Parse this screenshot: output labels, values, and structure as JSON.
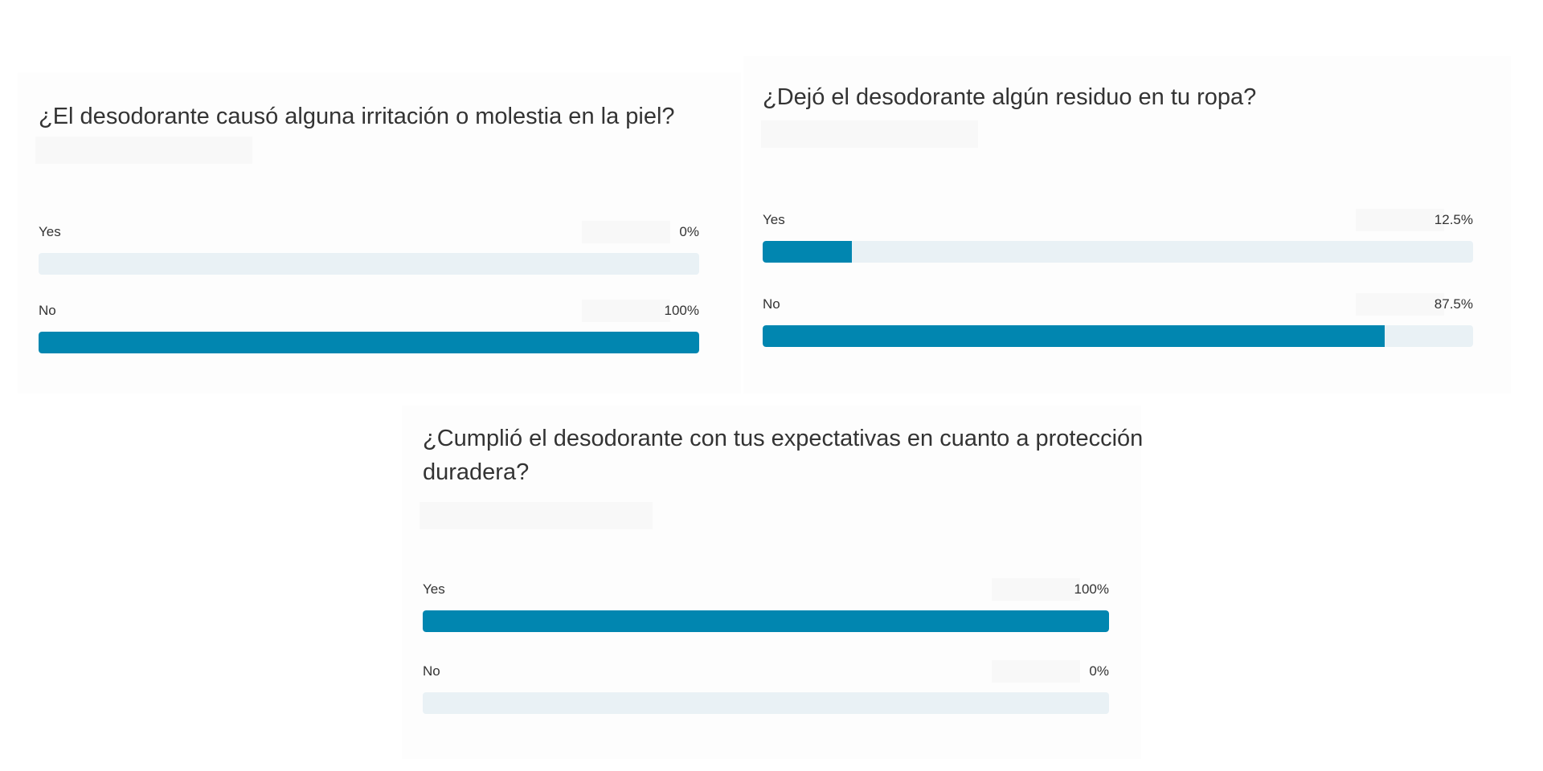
{
  "chart_data": [
    {
      "type": "bar",
      "title": "¿El desodorante causó alguna irritación o molestia en la piel?",
      "categories": [
        "Yes",
        "No"
      ],
      "values": [
        0,
        100
      ],
      "labels": [
        "0%",
        "100%"
      ],
      "ylim": [
        0,
        100
      ],
      "bar_color": "#0186b0",
      "track_color": "#e9f1f5"
    },
    {
      "type": "bar",
      "title": "¿Dejó el desodorante algún residuo en tu ropa?",
      "categories": [
        "Yes",
        "No"
      ],
      "values": [
        12.5,
        87.5
      ],
      "labels": [
        "12.5%",
        "87.5%"
      ],
      "ylim": [
        0,
        100
      ],
      "bar_color": "#0186b0",
      "track_color": "#e9f1f5"
    },
    {
      "type": "bar",
      "title": "¿Cumplió el desodorante con tus expectativas en cuanto a protección duradera?",
      "categories": [
        "Yes",
        "No"
      ],
      "values": [
        100,
        0
      ],
      "labels": [
        "100%",
        "0%"
      ],
      "ylim": [
        0,
        100
      ],
      "bar_color": "#0186b0",
      "track_color": "#e9f1f5"
    }
  ]
}
